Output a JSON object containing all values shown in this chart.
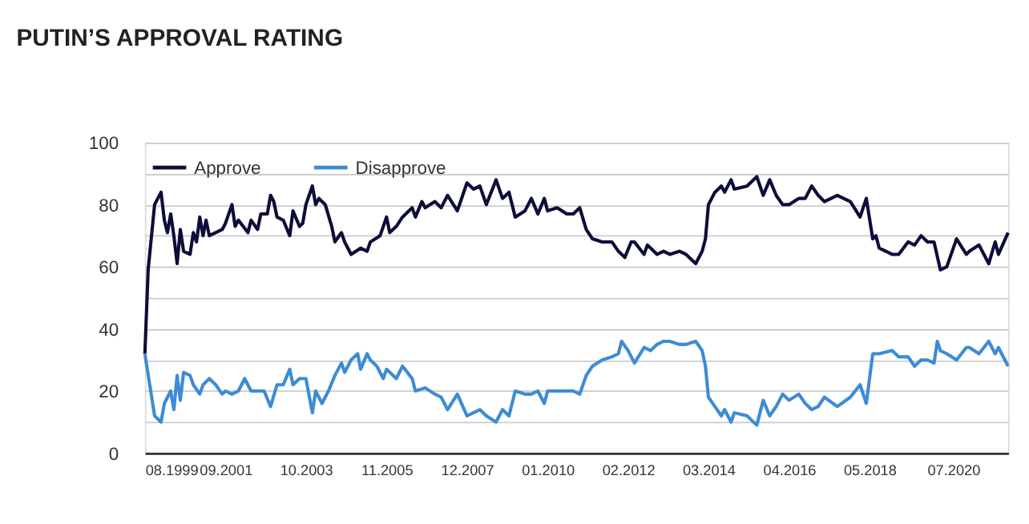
{
  "chart_data": {
    "type": "line",
    "title": "PUTIN’S APPROVAL RATING",
    "ylim": [
      0,
      100
    ],
    "yticks": [
      0,
      {
        "value": 10,
        "label": null
      },
      20,
      {
        "value": 30,
        "label": null
      },
      40,
      {
        "value": 50,
        "label": null
      },
      60,
      {
        "value": 70,
        "label": null
      },
      80,
      {
        "value": 90,
        "label": null
      },
      100
    ],
    "xlim": [
      "1999-08",
      "2021-12"
    ],
    "xticks": [
      {
        "value": "1999-08",
        "label": "08.1999"
      },
      {
        "value": "2001-09",
        "label": "09.2001"
      },
      {
        "value": "2003-10",
        "label": "10.2003"
      },
      {
        "value": "2005-11",
        "label": "11.2005"
      },
      {
        "value": "2007-12",
        "label": "12.2007"
      },
      {
        "value": "2010-01",
        "label": "01.2010"
      },
      {
        "value": "2012-02",
        "label": "02.2012"
      },
      {
        "value": "2014-03",
        "label": "03.2014"
      },
      {
        "value": "2016-04",
        "label": "04.2016"
      },
      {
        "value": "2018-05",
        "label": "05.2018"
      },
      {
        "value": "2020-07",
        "label": "07.2020"
      }
    ],
    "grid": "y",
    "legend": "top left",
    "line_style": "solid",
    "series": [
      {
        "name": "Approve",
        "color": "#0d0d3a",
        "x": [
          "1999-08",
          "1999-09",
          "1999-11",
          "2000-01",
          "2000-02",
          "2000-03",
          "2000-04",
          "2000-05",
          "2000-06",
          "2000-07",
          "2000-08",
          "2000-10",
          "2000-11",
          "2000-12",
          "2001-01",
          "2001-02",
          "2001-03",
          "2001-04",
          "2001-08",
          "2001-09",
          "2001-11",
          "2001-12",
          "2002-01",
          "2002-04",
          "2002-05",
          "2002-07",
          "2002-08",
          "2002-10",
          "2002-11",
          "2002-12",
          "2003-01",
          "2003-03",
          "2003-05",
          "2003-06",
          "2003-08",
          "2003-09",
          "2003-10",
          "2003-12",
          "2004-01",
          "2004-02",
          "2004-04",
          "2004-06",
          "2004-07",
          "2004-09",
          "2004-10",
          "2004-12",
          "2005-03",
          "2005-05",
          "2005-06",
          "2005-09",
          "2005-11",
          "2005-12",
          "2006-02",
          "2006-04",
          "2006-07",
          "2006-08",
          "2006-10",
          "2006-11",
          "2007-02",
          "2007-04",
          "2007-06",
          "2007-09",
          "2007-12",
          "2008-02",
          "2008-04",
          "2008-06",
          "2008-09",
          "2008-11",
          "2009-01",
          "2009-03",
          "2009-06",
          "2009-08",
          "2009-10",
          "2009-12",
          "2010-01",
          "2010-04",
          "2010-07",
          "2010-09",
          "2010-11",
          "2011-01",
          "2011-03",
          "2011-06",
          "2011-09",
          "2011-11",
          "2012-01",
          "2012-03",
          "2012-04",
          "2012-07",
          "2012-08",
          "2012-11",
          "2013-01",
          "2013-03",
          "2013-06",
          "2013-08",
          "2013-11",
          "2014-01",
          "2014-02",
          "2014-03",
          "2014-05",
          "2014-07",
          "2014-08",
          "2014-10",
          "2014-11",
          "2015-03",
          "2015-06",
          "2015-08",
          "2015-10",
          "2015-12",
          "2016-02",
          "2016-04",
          "2016-07",
          "2016-09",
          "2016-11",
          "2017-01",
          "2017-03",
          "2017-07",
          "2017-11",
          "2018-02",
          "2018-04",
          "2018-06",
          "2018-07",
          "2018-08",
          "2018-12",
          "2019-02",
          "2019-05",
          "2019-07",
          "2019-09",
          "2019-11",
          "2020-01",
          "2020-03",
          "2020-05",
          "2020-08",
          "2020-11",
          "2020-12",
          "2021-03",
          "2021-06",
          "2021-08",
          "2021-09",
          "2021-12"
        ],
        "values": [
          32,
          59,
          80,
          84,
          75,
          71,
          77,
          70,
          61,
          72,
          65,
          64,
          71,
          68,
          76,
          70,
          75,
          70,
          72,
          74,
          80,
          73,
          75,
          71,
          75,
          72,
          77,
          77,
          83,
          81,
          76,
          75,
          70,
          78,
          73,
          74,
          80,
          86,
          80,
          82,
          80,
          73,
          68,
          71,
          68,
          64,
          66,
          65,
          68,
          70,
          76,
          71,
          73,
          76,
          79,
          76,
          81,
          79,
          81,
          79,
          83,
          78,
          87,
          85,
          86,
          80,
          88,
          82,
          84,
          76,
          78,
          82,
          77,
          82,
          78,
          79,
          77,
          77,
          79,
          72,
          69,
          68,
          68,
          65,
          63,
          68,
          68,
          64,
          67,
          64,
          65,
          64,
          65,
          64,
          61,
          65,
          69,
          80,
          84,
          86,
          84,
          88,
          85,
          86,
          89,
          83,
          88,
          83,
          80,
          80,
          82,
          82,
          86,
          83,
          81,
          83,
          81,
          76,
          82,
          69,
          70,
          66,
          64,
          64,
          68,
          67,
          70,
          68,
          68,
          59,
          60,
          69,
          64,
          65,
          67,
          61,
          68,
          64,
          71
        ]
      },
      {
        "name": "Disapprove",
        "color": "#3d8bd4",
        "x": [
          "1999-08",
          "1999-11",
          "2000-01",
          "2000-02",
          "2000-04",
          "2000-05",
          "2000-06",
          "2000-07",
          "2000-08",
          "2000-10",
          "2000-11",
          "2001-01",
          "2001-02",
          "2001-04",
          "2001-06",
          "2001-08",
          "2001-09",
          "2001-11",
          "2002-01",
          "2002-03",
          "2002-05",
          "2002-09",
          "2002-11",
          "2003-01",
          "2003-03",
          "2003-05",
          "2003-06",
          "2003-08",
          "2003-10",
          "2003-12",
          "2004-01",
          "2004-03",
          "2004-05",
          "2004-07",
          "2004-09",
          "2004-10",
          "2004-12",
          "2005-02",
          "2005-03",
          "2005-05",
          "2005-06",
          "2005-08",
          "2005-10",
          "2005-11",
          "2006-02",
          "2006-04",
          "2006-07",
          "2006-08",
          "2006-11",
          "2007-02",
          "2007-04",
          "2007-06",
          "2007-09",
          "2007-12",
          "2008-02",
          "2008-04",
          "2008-06",
          "2008-09",
          "2008-11",
          "2009-01",
          "2009-03",
          "2009-06",
          "2009-08",
          "2009-10",
          "2009-12",
          "2010-01",
          "2010-04",
          "2010-07",
          "2010-09",
          "2010-11",
          "2011-01",
          "2011-03",
          "2011-06",
          "2011-09",
          "2011-11",
          "2011-12",
          "2012-02",
          "2012-04",
          "2012-07",
          "2012-09",
          "2012-11",
          "2013-01",
          "2013-03",
          "2013-06",
          "2013-08",
          "2013-11",
          "2014-01",
          "2014-02",
          "2014-03",
          "2014-05",
          "2014-07",
          "2014-08",
          "2014-10",
          "2014-11",
          "2015-03",
          "2015-06",
          "2015-08",
          "2015-10",
          "2015-12",
          "2016-02",
          "2016-04",
          "2016-07",
          "2016-09",
          "2016-11",
          "2017-01",
          "2017-03",
          "2017-07",
          "2017-11",
          "2018-02",
          "2018-04",
          "2018-06",
          "2018-07",
          "2018-08",
          "2018-12",
          "2019-02",
          "2019-05",
          "2019-07",
          "2019-09",
          "2019-11",
          "2020-01",
          "2020-02",
          "2020-03",
          "2020-05",
          "2020-08",
          "2020-11",
          "2020-12",
          "2021-03",
          "2021-06",
          "2021-08",
          "2021-09",
          "2021-12"
        ],
        "values": [
          32,
          12,
          10,
          16,
          20,
          14,
          25,
          17,
          26,
          25,
          22,
          19,
          22,
          24,
          22,
          19,
          20,
          19,
          20,
          24,
          20,
          20,
          15,
          22,
          22,
          27,
          22,
          24,
          24,
          13,
          20,
          16,
          20,
          25,
          29,
          26,
          30,
          32,
          27,
          32,
          30,
          28,
          24,
          27,
          24,
          28,
          24,
          20,
          21,
          19,
          18,
          14,
          19,
          12,
          13,
          14,
          12,
          10,
          14,
          12,
          20,
          19,
          19,
          20,
          16,
          20,
          20,
          20,
          20,
          19,
          25,
          28,
          30,
          31,
          32,
          36,
          33,
          29,
          34,
          33,
          35,
          36,
          36,
          35,
          35,
          36,
          33,
          28,
          18,
          15,
          12,
          14,
          10,
          13,
          12,
          9,
          17,
          12,
          15,
          19,
          17,
          19,
          16,
          14,
          15,
          18,
          15,
          18,
          22,
          16,
          32,
          32,
          32,
          33,
          31,
          31,
          28,
          30,
          30,
          29,
          36,
          33,
          32,
          30,
          34,
          34,
          32,
          36,
          32,
          34,
          28
        ]
      }
    ]
  }
}
